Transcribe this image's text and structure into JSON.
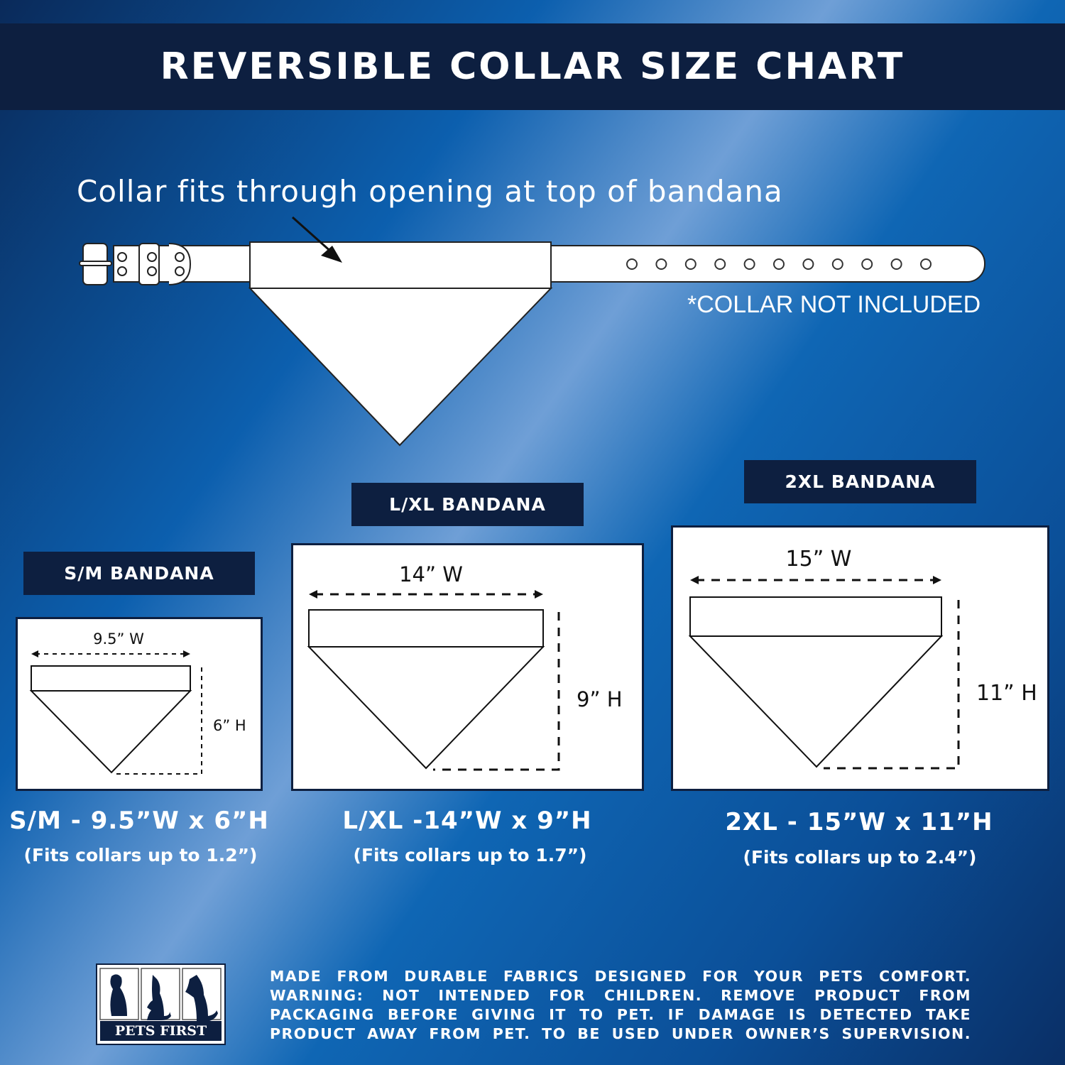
{
  "title": "REVERSIBLE COLLAR SIZE CHART",
  "subtitle": "Collar fits through opening at top of bandana",
  "collar_note": "*COLLAR NOT INCLUDED",
  "colors": {
    "navy": "#0d1f40",
    "background_blue": "#0c5fae",
    "white": "#ffffff"
  },
  "sizes": [
    {
      "label": "S/M BANDANA",
      "width": "9.5” W",
      "height": "6” H",
      "caption": "S/M - 9.5”W x 6”H",
      "fits": "(Fits collars up to 1.2”)"
    },
    {
      "label": "L/XL BANDANA",
      "width": "14” W",
      "height": "9” H",
      "caption": "L/XL -14”W x 9”H",
      "fits": "(Fits collars up to 1.7”)"
    },
    {
      "label": "2XL BANDANA",
      "width": "15” W",
      "height": "11” H",
      "caption": "2XL - 15”W x 11”H",
      "fits": "(Fits collars up to 2.4”)"
    }
  ],
  "brand": "PETS FIRST",
  "warning_lines": [
    "MADE FROM DURABLE FABRICS DESIGNED FOR YOUR PETS COMFORT.",
    "WARNING:  NOT  INTENDED  FOR  CHILDREN. REMOVE PRODUCT FROM",
    "PACKAGING BEFORE GIVING IT TO PET.  IF DAMAGE IS DETECTED TAKE",
    "PRODUCT AWAY FROM PET. TO BE USED UNDER OWNER’S SUPERVISION."
  ]
}
